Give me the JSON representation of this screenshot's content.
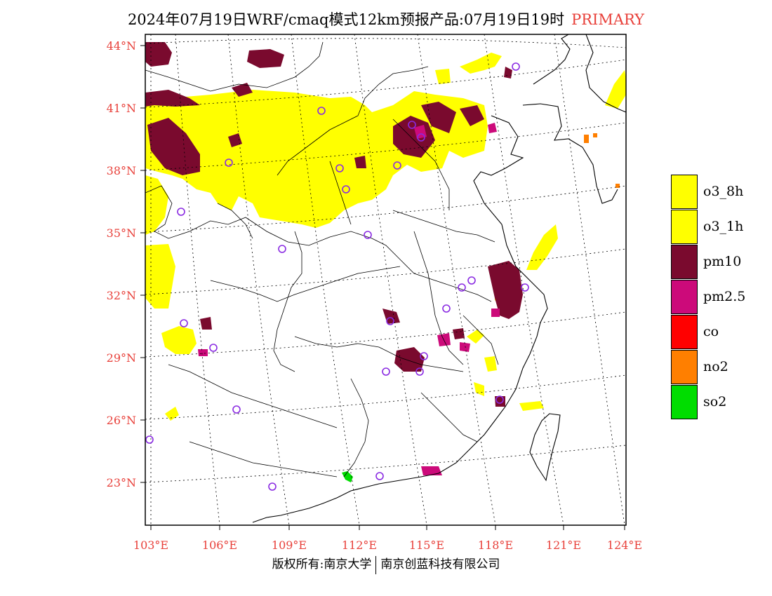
{
  "title": {
    "main": "2024年07月19日WRF/cmaq模式12km预报产品:07月19日19时",
    "type": "PRIMARY"
  },
  "axes": {
    "lat_labels": [
      "44°N",
      "41°N",
      "38°N",
      "35°N",
      "32°N",
      "29°N",
      "26°N",
      "23°N"
    ],
    "lon_labels": [
      "103°E",
      "106°E",
      "109°E",
      "112°E",
      "115°E",
      "118°E",
      "121°E",
      "124°E"
    ]
  },
  "legend": {
    "items": [
      {
        "label": "o3_8h",
        "color": "#ffff00"
      },
      {
        "label": "o3_1h",
        "color": "#ffff00"
      },
      {
        "label": "pm10",
        "color": "#7a0a2e"
      },
      {
        "label": "pm2.5",
        "color": "#cc0a7a"
      },
      {
        "label": "co",
        "color": "#ff0000"
      },
      {
        "label": "no2",
        "color": "#ff7f00"
      },
      {
        "label": "so2",
        "color": "#00dd00"
      }
    ]
  },
  "footer": {
    "left": "版权所有:南京大学",
    "right": "南京创蓝科技有限公司"
  },
  "map": {
    "colors": {
      "o3": "#ffff00",
      "pm10": "#7a0a2e",
      "pm25": "#cc0a7a",
      "no2": "#ff7f00",
      "so2": "#00dd00",
      "station": "#8a2be2"
    }
  }
}
